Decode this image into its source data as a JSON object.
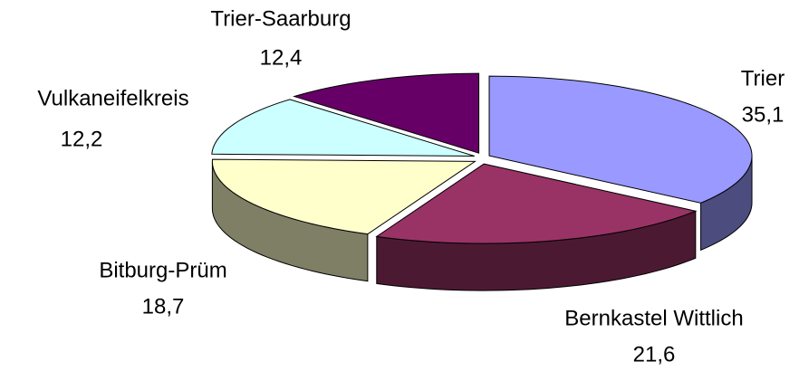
{
  "chart_data": {
    "type": "pie",
    "categories": [
      "Trier",
      "Bernkastel Wittlich",
      "Bitburg-Prüm",
      "Vulkaneifelkreis",
      "Trier-Saarburg"
    ],
    "values": [
      35.1,
      21.6,
      18.7,
      12.2,
      12.4
    ],
    "value_labels": [
      "35,1",
      "21,6",
      "18,7",
      "12,2",
      "12,4"
    ],
    "colors": [
      "#9999ff",
      "#993366",
      "#ffffcc",
      "#ccffff",
      "#660066"
    ]
  }
}
